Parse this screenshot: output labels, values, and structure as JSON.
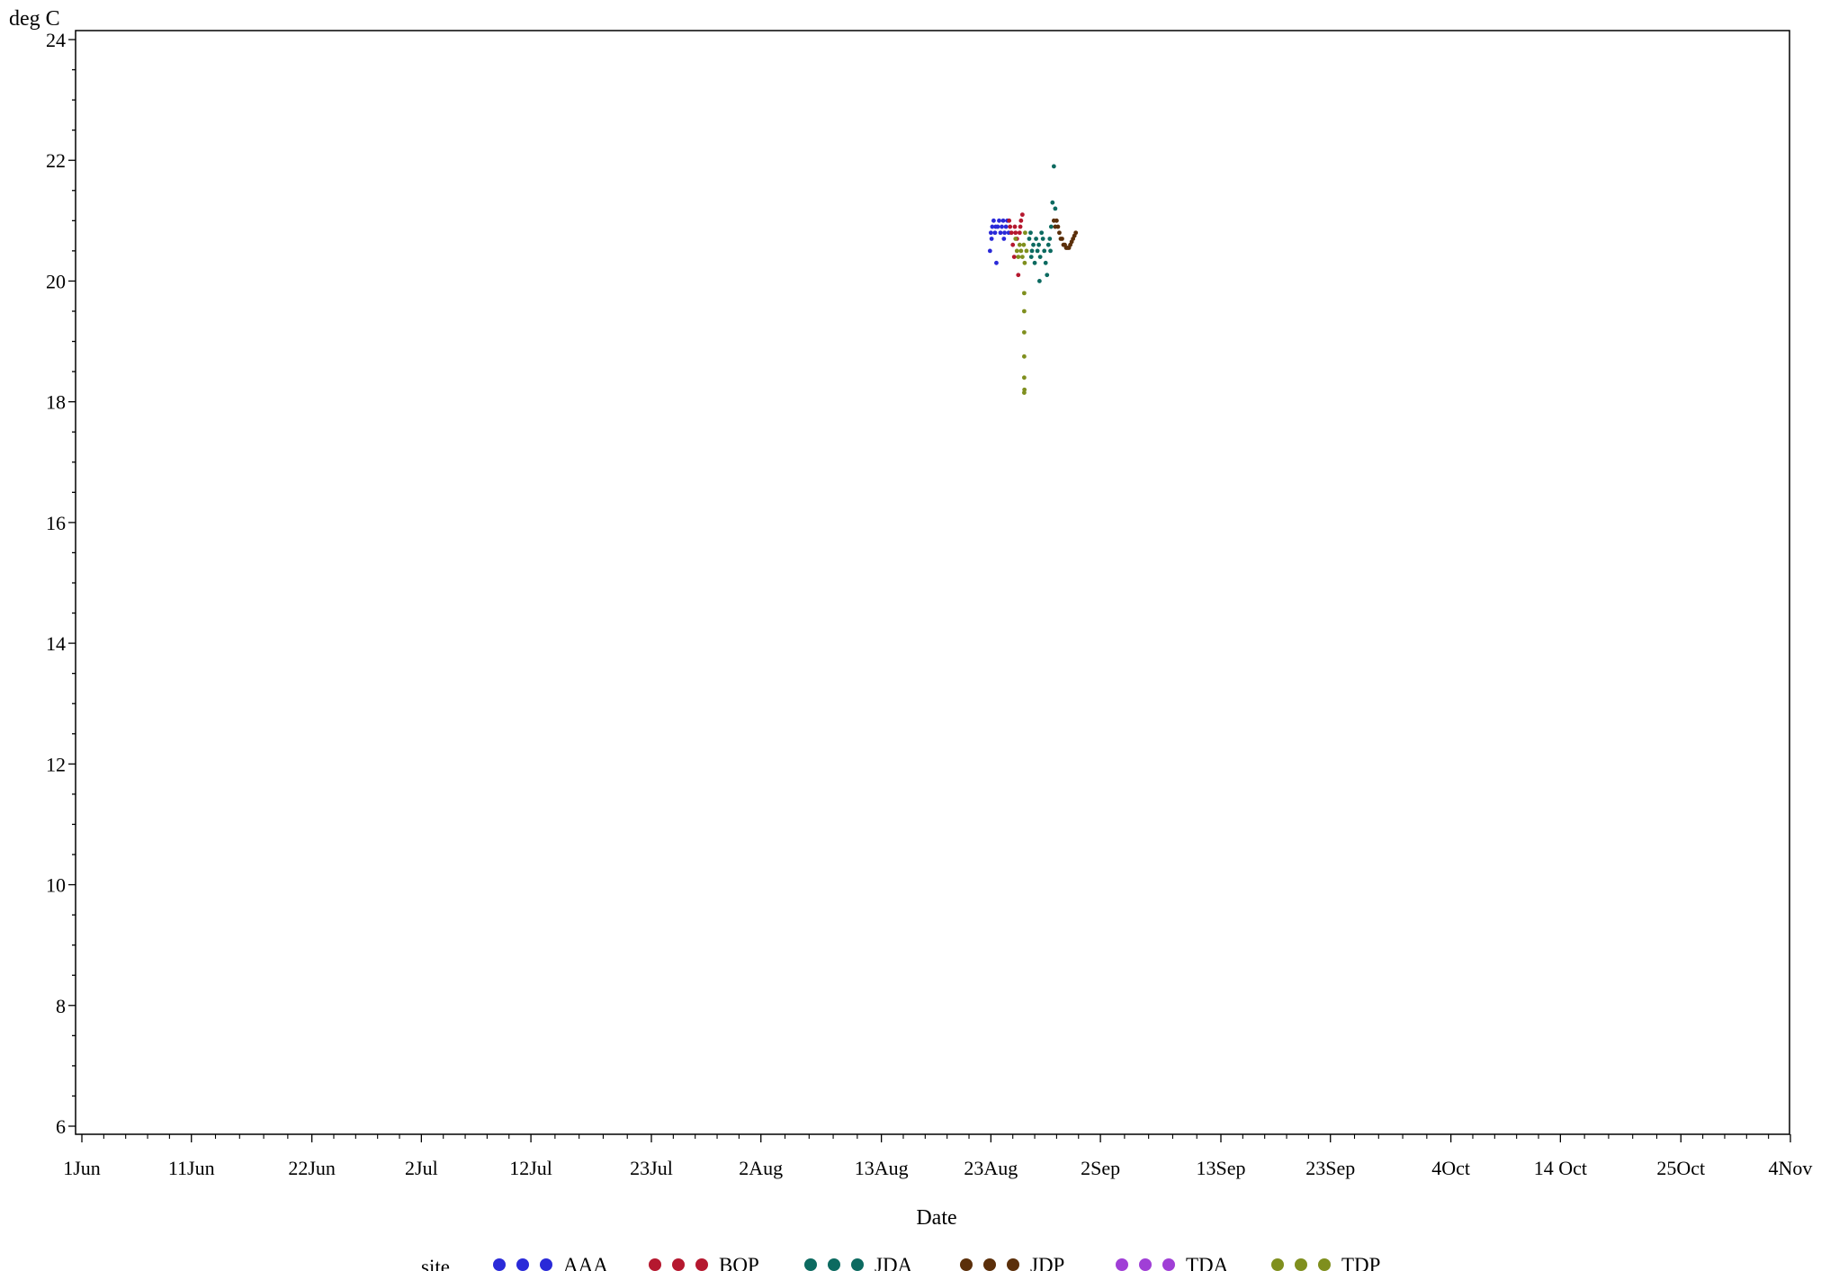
{
  "chart_data": {
    "type": "scatter",
    "title": "",
    "xlabel": "Date",
    "ylabel": "deg C",
    "xlim": [
      "2023-06-01",
      "2023-11-04"
    ],
    "ylim": [
      6,
      24
    ],
    "x_ticks": [
      {
        "date": "2023-06-01",
        "label": "1Jun"
      },
      {
        "date": "2023-06-11",
        "label": "11Jun"
      },
      {
        "date": "2023-06-22",
        "label": "22Jun"
      },
      {
        "date": "2023-07-02",
        "label": "2Jul"
      },
      {
        "date": "2023-07-12",
        "label": "12Jul"
      },
      {
        "date": "2023-07-23",
        "label": "23Jul"
      },
      {
        "date": "2023-08-02",
        "label": "2Aug"
      },
      {
        "date": "2023-08-13",
        "label": "13Aug"
      },
      {
        "date": "2023-08-23",
        "label": "23Aug"
      },
      {
        "date": "2023-09-02",
        "label": "2Sep"
      },
      {
        "date": "2023-09-13",
        "label": "13Sep"
      },
      {
        "date": "2023-09-23",
        "label": "23Sep"
      },
      {
        "date": "2023-10-04",
        "label": "4Oct"
      },
      {
        "date": "2023-10-14",
        "label": "14 Oct"
      },
      {
        "date": "2023-10-25",
        "label": "25Oct"
      },
      {
        "date": "2023-11-04",
        "label": "4Nov"
      }
    ],
    "y_ticks": [
      6,
      8,
      10,
      12,
      14,
      16,
      18,
      20,
      22,
      24
    ],
    "grid": false,
    "legend": {
      "title": "site",
      "position": "bottom"
    },
    "series": [
      {
        "name": "AAA",
        "color": "#2a2ad8",
        "points": [
          [
            "2023-08-23 00:00",
            20.8
          ],
          [
            "2023-08-23 03:00",
            20.9
          ],
          [
            "2023-08-23 06:00",
            21.0
          ],
          [
            "2023-08-23 09:00",
            20.8
          ],
          [
            "2023-08-23 12:00",
            20.3
          ],
          [
            "2023-08-23 15:00",
            20.9
          ],
          [
            "2023-08-23 18:00",
            21.0
          ],
          [
            "2023-08-23 21:00",
            20.8
          ],
          [
            "2023-08-24 00:00",
            20.9
          ],
          [
            "2023-08-24 03:00",
            21.0
          ],
          [
            "2023-08-24 06:00",
            20.8
          ],
          [
            "2023-08-24 09:00",
            20.9
          ],
          [
            "2023-08-24 12:00",
            21.0
          ],
          [
            "2023-08-24 15:00",
            20.8
          ],
          [
            "2023-08-22 22:00",
            20.5
          ],
          [
            "2023-08-23 01:30",
            20.7
          ],
          [
            "2023-08-23 10:30",
            20.9
          ],
          [
            "2023-08-24 04:30",
            20.7
          ]
        ]
      },
      {
        "name": "BOP",
        "color": "#b5182f",
        "points": [
          [
            "2023-08-24 18:00",
            20.9
          ],
          [
            "2023-08-24 21:00",
            20.8
          ],
          [
            "2023-08-25 00:00",
            20.6
          ],
          [
            "2023-08-25 03:00",
            20.4
          ],
          [
            "2023-08-25 06:00",
            20.8
          ],
          [
            "2023-08-25 09:00",
            20.7
          ],
          [
            "2023-08-25 12:00",
            20.1
          ],
          [
            "2023-08-25 15:00",
            20.8
          ],
          [
            "2023-08-25 18:00",
            21.0
          ],
          [
            "2023-08-25 21:00",
            21.1
          ],
          [
            "2023-08-24 16:00",
            21.0
          ],
          [
            "2023-08-25 04:30",
            20.9
          ],
          [
            "2023-08-25 16:30",
            20.9
          ]
        ]
      },
      {
        "name": "JDA",
        "color": "#0c6a60",
        "points": [
          [
            "2023-08-26 12:00",
            20.7
          ],
          [
            "2023-08-26 15:00",
            20.8
          ],
          [
            "2023-08-26 18:00",
            20.5
          ],
          [
            "2023-08-26 21:00",
            20.6
          ],
          [
            "2023-08-27 00:00",
            20.3
          ],
          [
            "2023-08-27 03:00",
            20.7
          ],
          [
            "2023-08-27 06:00",
            20.5
          ],
          [
            "2023-08-27 09:00",
            20.6
          ],
          [
            "2023-08-27 12:00",
            20.4
          ],
          [
            "2023-08-27 15:00",
            20.8
          ],
          [
            "2023-08-27 18:00",
            20.7
          ],
          [
            "2023-08-27 21:00",
            20.5
          ],
          [
            "2023-08-28 00:00",
            20.3
          ],
          [
            "2023-08-28 03:00",
            20.1
          ],
          [
            "2023-08-28 06:00",
            20.6
          ],
          [
            "2023-08-28 09:00",
            20.7
          ],
          [
            "2023-08-28 12:00",
            20.9
          ],
          [
            "2023-08-28 15:00",
            21.3
          ],
          [
            "2023-08-28 18:00",
            21.9
          ],
          [
            "2023-08-28 21:00",
            21.2
          ],
          [
            "2023-08-26 16:30",
            20.4
          ],
          [
            "2023-08-27 10:30",
            20.0
          ],
          [
            "2023-08-28 10:30",
            20.5
          ]
        ]
      },
      {
        "name": "JDP",
        "color": "#5b2f0a",
        "points": [
          [
            "2023-08-29 00:00",
            21.0
          ],
          [
            "2023-08-29 03:00",
            20.9
          ],
          [
            "2023-08-29 06:00",
            20.8
          ],
          [
            "2023-08-29 09:00",
            20.7
          ],
          [
            "2023-08-29 12:00",
            20.7
          ],
          [
            "2023-08-29 15:00",
            20.6
          ],
          [
            "2023-08-29 18:00",
            20.6
          ],
          [
            "2023-08-29 21:00",
            20.55
          ],
          [
            "2023-08-30 00:00",
            20.55
          ],
          [
            "2023-08-30 03:00",
            20.55
          ],
          [
            "2023-08-30 06:00",
            20.6
          ],
          [
            "2023-08-30 09:00",
            20.65
          ],
          [
            "2023-08-30 12:00",
            20.7
          ],
          [
            "2023-08-30 15:00",
            20.75
          ],
          [
            "2023-08-30 18:00",
            20.8
          ],
          [
            "2023-08-28 21:00",
            20.9
          ],
          [
            "2023-08-28 18:00",
            21.0
          ]
        ]
      },
      {
        "name": "TDA",
        "color": "#a03fd6",
        "points": []
      },
      {
        "name": "TDP",
        "color": "#7f8f1e",
        "points": [
          [
            "2023-08-25 06:00",
            20.7
          ],
          [
            "2023-08-25 09:00",
            20.5
          ],
          [
            "2023-08-25 12:00",
            20.4
          ],
          [
            "2023-08-25 15:00",
            20.6
          ],
          [
            "2023-08-25 18:00",
            20.5
          ],
          [
            "2023-08-25 21:00",
            20.4
          ],
          [
            "2023-08-26 00:00",
            20.6
          ],
          [
            "2023-08-26 03:00",
            20.8
          ],
          [
            "2023-08-26 06:00",
            20.5
          ],
          [
            "2023-08-26 02:00",
            20.3
          ],
          [
            "2023-08-26 01:00",
            19.8
          ],
          [
            "2023-08-26 01:00",
            19.5
          ],
          [
            "2023-08-26 01:00",
            19.15
          ],
          [
            "2023-08-26 01:00",
            18.75
          ],
          [
            "2023-08-26 01:00",
            18.4
          ],
          [
            "2023-08-26 01:00",
            18.15
          ],
          [
            "2023-08-26 01:30",
            18.2
          ]
        ]
      }
    ]
  }
}
